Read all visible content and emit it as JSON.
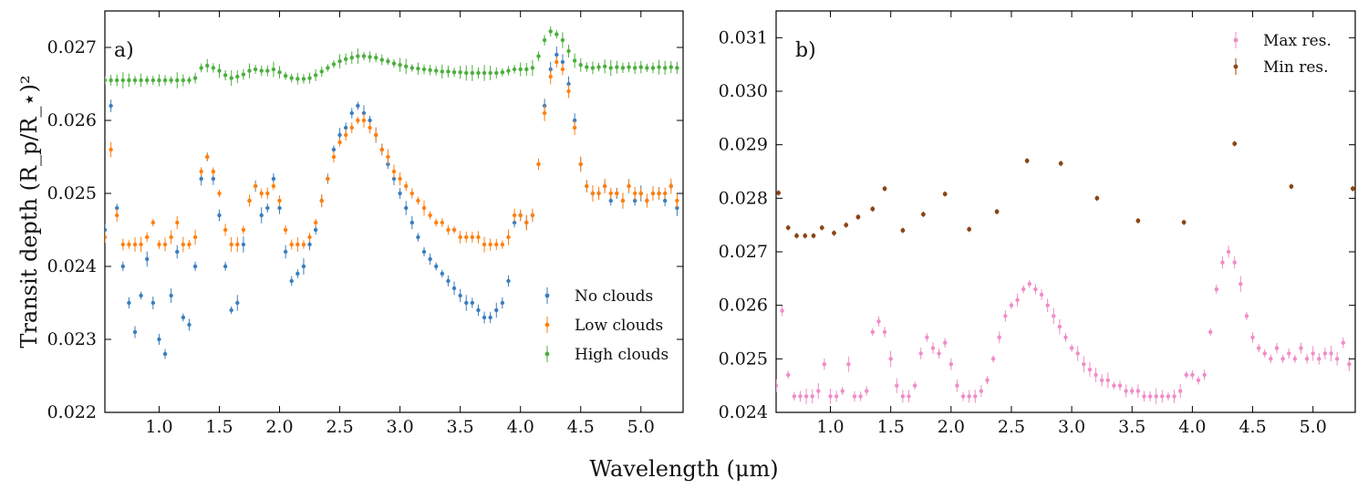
{
  "figure": {
    "xlabel": "Wavelength (μm)",
    "ylabel": "Transit depth (R_p/R_⋆)²"
  },
  "chart_data": [
    {
      "type": "scatter",
      "panel": "a)",
      "xlabel": "Wavelength (μm)",
      "ylabel": "Transit depth (R_p/R_⋆)²",
      "xlim": [
        0.55,
        5.35
      ],
      "ylim": [
        0.022,
        0.0275
      ],
      "xticks": [
        "1.0",
        "1.5",
        "2.0",
        "2.5",
        "3.0",
        "3.5",
        "4.0",
        "4.5",
        "5.0"
      ],
      "yticks": [
        "0.022",
        "0.023",
        "0.024",
        "0.025",
        "0.026",
        "0.027"
      ],
      "legend": "lower-right",
      "grid": false,
      "series": [
        {
          "name": "No clouds",
          "color": "#3a7ebf",
          "x": [
            0.55,
            0.6,
            0.65,
            0.7,
            0.75,
            0.8,
            0.85,
            0.9,
            0.95,
            1.0,
            1.05,
            1.1,
            1.15,
            1.2,
            1.25,
            1.3,
            1.35,
            1.4,
            1.45,
            1.5,
            1.55,
            1.6,
            1.65,
            1.7,
            1.75,
            1.8,
            1.85,
            1.9,
            1.95,
            2.0,
            2.05,
            2.1,
            2.15,
            2.2,
            2.25,
            2.3,
            2.35,
            2.4,
            2.45,
            2.5,
            2.55,
            2.6,
            2.65,
            2.7,
            2.75,
            2.8,
            2.85,
            2.9,
            2.95,
            3.0,
            3.05,
            3.1,
            3.15,
            3.2,
            3.25,
            3.3,
            3.35,
            3.4,
            3.45,
            3.5,
            3.55,
            3.6,
            3.65,
            3.7,
            3.75,
            3.8,
            3.85,
            3.9,
            3.95,
            4.0,
            4.05,
            4.1,
            4.15,
            4.2,
            4.25,
            4.3,
            4.35,
            4.4,
            4.45,
            4.5,
            4.55,
            4.6,
            4.65,
            4.7,
            4.75,
            4.8,
            4.85,
            4.9,
            4.95,
            5.0,
            5.05,
            5.1,
            5.15,
            5.2,
            5.25,
            5.3
          ],
          "y": [
            0.0245,
            0.0262,
            0.0248,
            0.024,
            0.0235,
            0.0231,
            0.0236,
            0.0241,
            0.0235,
            0.023,
            0.0228,
            0.0236,
            0.0242,
            0.0233,
            0.0232,
            0.024,
            0.0252,
            0.0255,
            0.0252,
            0.0247,
            0.024,
            0.0234,
            0.0235,
            0.0243,
            0.0249,
            0.0251,
            0.0247,
            0.0248,
            0.0252,
            0.0248,
            0.0242,
            0.0238,
            0.0239,
            0.024,
            0.0243,
            0.0245,
            0.0249,
            0.0252,
            0.0256,
            0.0258,
            0.0259,
            0.0261,
            0.0262,
            0.0261,
            0.026,
            0.0258,
            0.0256,
            0.0254,
            0.0252,
            0.025,
            0.0248,
            0.0246,
            0.0244,
            0.0242,
            0.0241,
            0.024,
            0.0239,
            0.0238,
            0.0237,
            0.0236,
            0.0235,
            0.0235,
            0.0234,
            0.0233,
            0.0233,
            0.0234,
            0.0235,
            0.0238,
            0.0246,
            0.0247,
            0.0246,
            0.0247,
            0.0254,
            0.0262,
            0.0267,
            0.0269,
            0.0268,
            0.0265,
            0.026,
            0.0254,
            0.0251,
            0.025,
            0.025,
            0.0251,
            0.0249,
            0.025,
            0.0249,
            0.0251,
            0.0249,
            0.025,
            0.0249,
            0.025,
            0.025,
            0.0249,
            0.0251,
            0.0248
          ]
        },
        {
          "name": "Low clouds",
          "color": "#ff7f0e",
          "x": [
            0.55,
            0.6,
            0.65,
            0.7,
            0.75,
            0.8,
            0.85,
            0.9,
            0.95,
            1.0,
            1.05,
            1.1,
            1.15,
            1.2,
            1.25,
            1.3,
            1.35,
            1.4,
            1.45,
            1.5,
            1.55,
            1.6,
            1.65,
            1.7,
            1.75,
            1.8,
            1.85,
            1.9,
            1.95,
            2.0,
            2.05,
            2.1,
            2.15,
            2.2,
            2.25,
            2.3,
            2.35,
            2.4,
            2.45,
            2.5,
            2.55,
            2.6,
            2.65,
            2.7,
            2.75,
            2.8,
            2.85,
            2.9,
            2.95,
            3.0,
            3.05,
            3.1,
            3.15,
            3.2,
            3.25,
            3.3,
            3.35,
            3.4,
            3.45,
            3.5,
            3.55,
            3.6,
            3.65,
            3.7,
            3.75,
            3.8,
            3.85,
            3.9,
            3.95,
            4.0,
            4.05,
            4.1,
            4.15,
            4.2,
            4.25,
            4.3,
            4.35,
            4.4,
            4.45,
            4.5,
            4.55,
            4.6,
            4.65,
            4.7,
            4.75,
            4.8,
            4.85,
            4.9,
            4.95,
            5.0,
            5.05,
            5.1,
            5.15,
            5.2,
            5.25,
            5.3
          ],
          "y": [
            0.0244,
            0.0256,
            0.0247,
            0.0243,
            0.0243,
            0.0243,
            0.0243,
            0.0244,
            0.0246,
            0.0243,
            0.0243,
            0.0244,
            0.0246,
            0.0243,
            0.0243,
            0.0244,
            0.0253,
            0.0255,
            0.0253,
            0.025,
            0.0245,
            0.0243,
            0.0243,
            0.0245,
            0.0249,
            0.0251,
            0.025,
            0.025,
            0.0251,
            0.0249,
            0.0245,
            0.0243,
            0.0243,
            0.0243,
            0.0244,
            0.0246,
            0.0249,
            0.0252,
            0.0255,
            0.0257,
            0.0258,
            0.0259,
            0.026,
            0.026,
            0.0259,
            0.0258,
            0.0256,
            0.0255,
            0.0253,
            0.0252,
            0.0251,
            0.025,
            0.0249,
            0.0248,
            0.0247,
            0.0246,
            0.0246,
            0.0245,
            0.0245,
            0.0244,
            0.0244,
            0.0244,
            0.0244,
            0.0243,
            0.0243,
            0.0243,
            0.0243,
            0.0244,
            0.0247,
            0.0247,
            0.0246,
            0.0247,
            0.0254,
            0.0261,
            0.0266,
            0.0268,
            0.0267,
            0.0264,
            0.0259,
            0.0254,
            0.0251,
            0.025,
            0.025,
            0.0251,
            0.025,
            0.025,
            0.0249,
            0.0251,
            0.025,
            0.025,
            0.0249,
            0.025,
            0.025,
            0.025,
            0.0251,
            0.0249
          ]
        },
        {
          "name": "High clouds",
          "color": "#4caf3e",
          "x": [
            0.55,
            0.6,
            0.65,
            0.7,
            0.75,
            0.8,
            0.85,
            0.9,
            0.95,
            1.0,
            1.05,
            1.1,
            1.15,
            1.2,
            1.25,
            1.3,
            1.35,
            1.4,
            1.45,
            1.5,
            1.55,
            1.6,
            1.65,
            1.7,
            1.75,
            1.8,
            1.85,
            1.9,
            1.95,
            2.0,
            2.05,
            2.1,
            2.15,
            2.2,
            2.25,
            2.3,
            2.35,
            2.4,
            2.45,
            2.5,
            2.55,
            2.6,
            2.65,
            2.7,
            2.75,
            2.8,
            2.85,
            2.9,
            2.95,
            3.0,
            3.05,
            3.1,
            3.15,
            3.2,
            3.25,
            3.3,
            3.35,
            3.4,
            3.45,
            3.5,
            3.55,
            3.6,
            3.65,
            3.7,
            3.75,
            3.8,
            3.85,
            3.9,
            3.95,
            4.0,
            4.05,
            4.1,
            4.15,
            4.2,
            4.25,
            4.3,
            4.35,
            4.4,
            4.45,
            4.5,
            4.55,
            4.6,
            4.65,
            4.7,
            4.75,
            4.8,
            4.85,
            4.9,
            4.95,
            5.0,
            5.05,
            5.1,
            5.15,
            5.2,
            5.25,
            5.3
          ],
          "y": [
            0.02655,
            0.02655,
            0.02655,
            0.02655,
            0.02655,
            0.02655,
            0.02655,
            0.02655,
            0.02655,
            0.02655,
            0.02655,
            0.02655,
            0.02655,
            0.02655,
            0.02655,
            0.02658,
            0.02672,
            0.02675,
            0.02672,
            0.02668,
            0.02662,
            0.02658,
            0.0266,
            0.02663,
            0.02668,
            0.0267,
            0.02668,
            0.02668,
            0.0267,
            0.02666,
            0.02661,
            0.02658,
            0.02657,
            0.02657,
            0.02658,
            0.02662,
            0.02667,
            0.02672,
            0.02677,
            0.02681,
            0.02684,
            0.02686,
            0.02688,
            0.02688,
            0.02687,
            0.02686,
            0.02683,
            0.02681,
            0.02678,
            0.02676,
            0.02674,
            0.02672,
            0.02671,
            0.0267,
            0.02669,
            0.02668,
            0.02667,
            0.02667,
            0.02666,
            0.02666,
            0.02665,
            0.02665,
            0.02665,
            0.02665,
            0.02665,
            0.02665,
            0.02666,
            0.02668,
            0.0267,
            0.0267,
            0.0267,
            0.02672,
            0.02688,
            0.0271,
            0.02722,
            0.02718,
            0.0271,
            0.02695,
            0.02682,
            0.02676,
            0.02673,
            0.02672,
            0.02673,
            0.02674,
            0.02672,
            0.02673,
            0.02672,
            0.02673,
            0.02672,
            0.02673,
            0.02672,
            0.02672,
            0.02673,
            0.02672,
            0.02673,
            0.02672
          ]
        }
      ]
    },
    {
      "type": "scatter",
      "panel": "b)",
      "xlim": [
        0.55,
        5.35
      ],
      "ylim": [
        0.024,
        0.0315
      ],
      "xticks": [
        "1.0",
        "1.5",
        "2.0",
        "2.5",
        "3.0",
        "3.5",
        "4.0",
        "4.5",
        "5.0"
      ],
      "yticks": [
        "0.024",
        "0.025",
        "0.026",
        "0.027",
        "0.028",
        "0.029",
        "0.030",
        "0.031"
      ],
      "legend": "top-right",
      "grid": false,
      "series": [
        {
          "name": "Max res.",
          "color": "#f08cc8",
          "x": [
            0.55,
            0.6,
            0.65,
            0.7,
            0.75,
            0.8,
            0.85,
            0.9,
            0.95,
            1.0,
            1.05,
            1.1,
            1.15,
            1.2,
            1.25,
            1.3,
            1.35,
            1.4,
            1.45,
            1.5,
            1.55,
            1.6,
            1.65,
            1.7,
            1.75,
            1.8,
            1.85,
            1.9,
            1.95,
            2.0,
            2.05,
            2.1,
            2.15,
            2.2,
            2.25,
            2.3,
            2.35,
            2.4,
            2.45,
            2.5,
            2.55,
            2.6,
            2.65,
            2.7,
            2.75,
            2.8,
            2.85,
            2.9,
            2.95,
            3.0,
            3.05,
            3.1,
            3.15,
            3.2,
            3.25,
            3.3,
            3.35,
            3.4,
            3.45,
            3.5,
            3.55,
            3.6,
            3.65,
            3.7,
            3.75,
            3.8,
            3.85,
            3.9,
            3.95,
            4.0,
            4.05,
            4.1,
            4.15,
            4.2,
            4.25,
            4.3,
            4.35,
            4.4,
            4.45,
            4.5,
            4.55,
            4.6,
            4.65,
            4.7,
            4.75,
            4.8,
            4.85,
            4.9,
            4.95,
            5.0,
            5.05,
            5.1,
            5.15,
            5.2,
            5.25,
            5.3
          ],
          "y": [
            0.0245,
            0.0259,
            0.0247,
            0.0243,
            0.0243,
            0.0243,
            0.0243,
            0.0244,
            0.0249,
            0.0243,
            0.0243,
            0.0244,
            0.0249,
            0.0243,
            0.0243,
            0.0244,
            0.0255,
            0.0257,
            0.0255,
            0.025,
            0.0245,
            0.0243,
            0.0243,
            0.0245,
            0.0251,
            0.0254,
            0.0252,
            0.0251,
            0.0253,
            0.0249,
            0.0245,
            0.0243,
            0.0243,
            0.0243,
            0.0244,
            0.0246,
            0.025,
            0.0254,
            0.0258,
            0.026,
            0.0261,
            0.0263,
            0.0264,
            0.0263,
            0.0262,
            0.026,
            0.0258,
            0.0256,
            0.0254,
            0.0252,
            0.0251,
            0.0249,
            0.0248,
            0.0247,
            0.0246,
            0.0246,
            0.0245,
            0.0245,
            0.0244,
            0.0244,
            0.0244,
            0.0243,
            0.0243,
            0.0243,
            0.0243,
            0.0243,
            0.0243,
            0.0244,
            0.0247,
            0.0247,
            0.0246,
            0.0247,
            0.0255,
            0.0263,
            0.0268,
            0.027,
            0.0268,
            0.0264,
            0.0258,
            0.0254,
            0.0252,
            0.0251,
            0.025,
            0.0252,
            0.025,
            0.0251,
            0.025,
            0.0252,
            0.025,
            0.0251,
            0.025,
            0.0251,
            0.0251,
            0.025,
            0.0253,
            0.0249
          ]
        },
        {
          "name": "Min res.",
          "color": "#8b4513",
          "x": [
            0.57,
            0.65,
            0.72,
            0.79,
            0.86,
            0.93,
            1.03,
            1.13,
            1.23,
            1.35,
            1.45,
            1.6,
            1.77,
            1.95,
            2.15,
            2.38,
            2.63,
            2.91,
            3.21,
            3.55,
            3.93,
            4.35,
            4.82,
            5.33
          ],
          "y": [
            0.0281,
            0.02745,
            0.0273,
            0.0273,
            0.0273,
            0.02745,
            0.02735,
            0.0275,
            0.02765,
            0.0278,
            0.02818,
            0.0274,
            0.0277,
            0.02808,
            0.02742,
            0.02775,
            0.0287,
            0.02865,
            0.028,
            0.02758,
            0.02755,
            0.02902,
            0.02822,
            0.02818
          ]
        }
      ]
    }
  ]
}
